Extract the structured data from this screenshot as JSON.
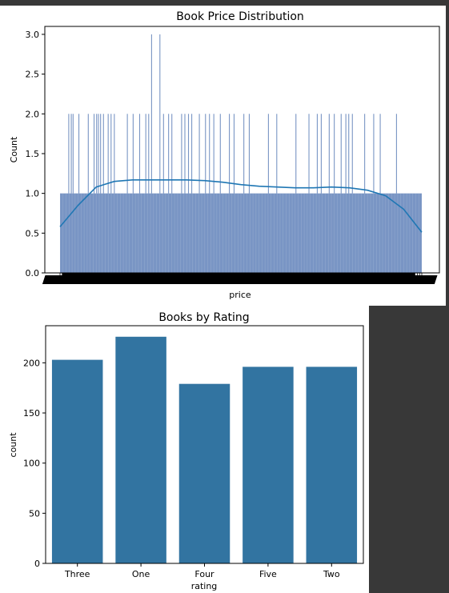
{
  "chart_data": [
    {
      "type": "histogram",
      "title": "Book Price Distribution",
      "xlabel": "price",
      "ylabel": "Count",
      "ylim": [
        0,
        3.1
      ],
      "yticks": [
        "0.0",
        "0.5",
        "1.0",
        "1.5",
        "2.0",
        "2.5",
        "3.0"
      ],
      "ytick_values": [
        0,
        0.5,
        1.0,
        1.5,
        2.0,
        2.5,
        3.0
      ],
      "bar_color": "#4c72b0",
      "kde_color": "#1f77b4",
      "base_count": 1,
      "spikes_2": [
        2.4,
        3.1,
        3.6,
        5.2,
        7.8,
        9.4,
        10.1,
        10.6,
        11.2,
        12.0,
        13.3,
        14.1,
        15.0,
        18.6,
        20.2,
        22.0,
        23.7,
        24.5,
        28.6,
        30.0,
        30.9,
        33.6,
        34.5,
        35.5,
        36.4,
        38.5,
        40.2,
        41.3,
        42.5,
        44.3,
        46.8,
        48.1,
        50.8,
        52.3,
        57.6,
        59.9,
        65.2,
        68.8,
        71.1,
        72.2,
        74.4,
        75.8,
        77.7,
        79.0,
        79.8,
        80.8,
        84.2,
        86.7,
        88.5,
        93.0
      ],
      "spikes_3": [
        25.3,
        27.6
      ],
      "kde_x": [
        0,
        5,
        10,
        15,
        20,
        25,
        30,
        35,
        40,
        45,
        50,
        55,
        60,
        65,
        70,
        75,
        80,
        85,
        90,
        95,
        100
      ],
      "kde_y": [
        0.58,
        0.85,
        1.08,
        1.15,
        1.17,
        1.17,
        1.17,
        1.17,
        1.16,
        1.14,
        1.11,
        1.09,
        1.08,
        1.07,
        1.07,
        1.08,
        1.07,
        1.04,
        0.97,
        0.8,
        0.51
      ]
    },
    {
      "type": "bar",
      "title": "Books by Rating",
      "xlabel": "rating",
      "ylabel": "count",
      "categories": [
        "Three",
        "One",
        "Four",
        "Five",
        "Two"
      ],
      "values": [
        203,
        226,
        179,
        196,
        196
      ],
      "ylim": [
        0,
        237
      ],
      "yticks": [
        "0",
        "50",
        "100",
        "150",
        "200"
      ],
      "ytick_values": [
        0,
        50,
        100,
        150,
        200
      ],
      "bar_color": "#3274a1"
    }
  ]
}
